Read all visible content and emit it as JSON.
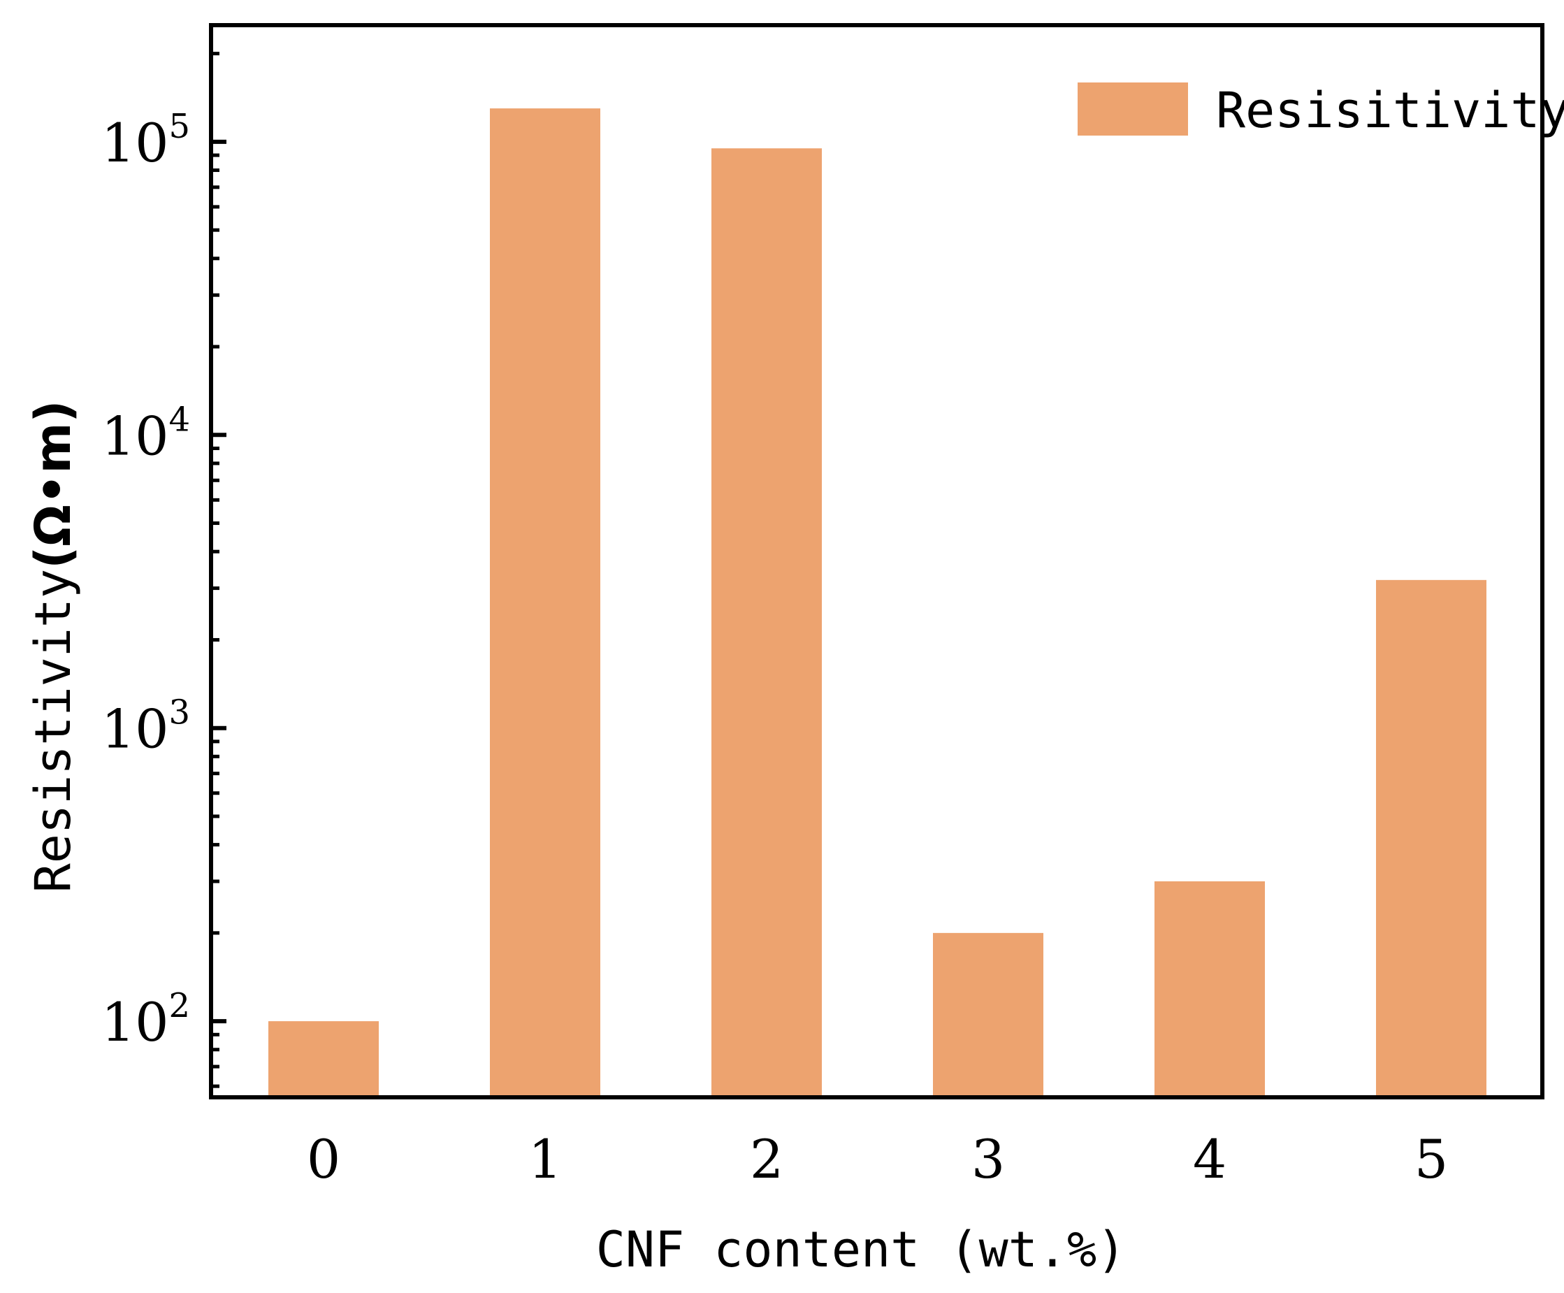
{
  "chart_data": {
    "type": "bar",
    "categories": [
      "0",
      "1",
      "2",
      "3",
      "4",
      "5"
    ],
    "series": [
      {
        "name": "Resisitivity",
        "values": [
          100,
          130000,
          95000,
          200,
          300,
          3200
        ],
        "color": "#EDA36F"
      }
    ],
    "xlabel": "CNF content (wt.%)",
    "ylabel": "Resistivity",
    "ylabel_unit": "(Ω•m)",
    "yscale": "log",
    "ylim": [
      55,
      250000
    ],
    "yticks": [
      {
        "value": 100,
        "base": "10",
        "exp": "2"
      },
      {
        "value": 1000,
        "base": "10",
        "exp": "3"
      },
      {
        "value": 10000,
        "base": "10",
        "exp": "4"
      },
      {
        "value": 100000,
        "base": "10",
        "exp": "5"
      }
    ],
    "legend": {
      "position": "top-right"
    },
    "grid": false
  }
}
